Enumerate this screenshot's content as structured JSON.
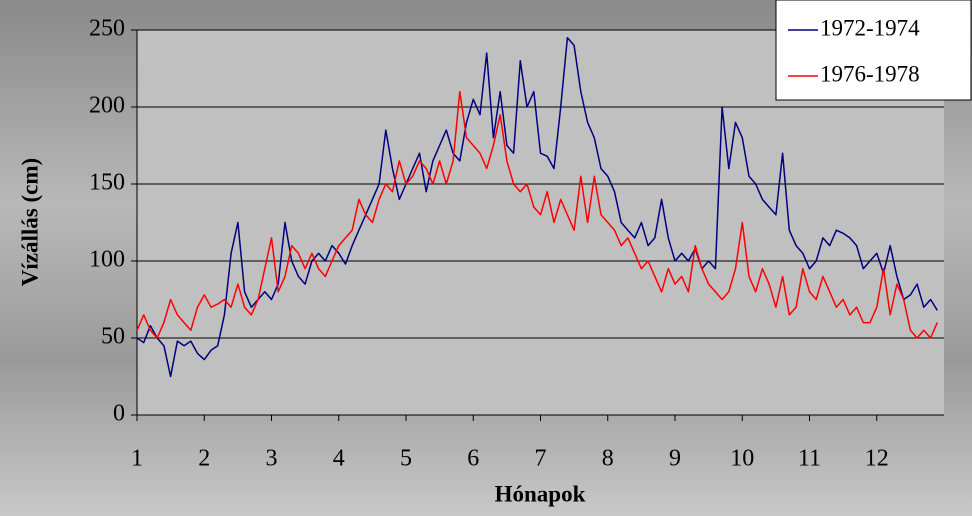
{
  "chart_data": {
    "type": "line",
    "x_label": "Hónapok",
    "y_label": "Vízállás (cm)",
    "x": [
      1.0,
      1.1,
      1.2,
      1.3,
      1.4,
      1.5,
      1.6,
      1.7,
      1.8,
      1.9,
      2.0,
      2.1,
      2.2,
      2.3,
      2.4,
      2.5,
      2.6,
      2.7,
      2.8,
      2.9,
      3.0,
      3.1,
      3.2,
      3.3,
      3.4,
      3.5,
      3.6,
      3.7,
      3.8,
      3.9,
      4.0,
      4.1,
      4.2,
      4.3,
      4.4,
      4.5,
      4.6,
      4.7,
      4.8,
      4.9,
      5.0,
      5.1,
      5.2,
      5.3,
      5.4,
      5.5,
      5.6,
      5.7,
      5.8,
      5.9,
      6.0,
      6.1,
      6.2,
      6.3,
      6.4,
      6.5,
      6.6,
      6.7,
      6.8,
      6.9,
      7.0,
      7.1,
      7.2,
      7.3,
      7.4,
      7.5,
      7.6,
      7.7,
      7.8,
      7.9,
      8.0,
      8.1,
      8.2,
      8.3,
      8.4,
      8.5,
      8.6,
      8.7,
      8.8,
      8.9,
      9.0,
      9.1,
      9.2,
      9.3,
      9.4,
      9.5,
      9.6,
      9.7,
      9.8,
      9.9,
      10.0,
      10.1,
      10.2,
      10.3,
      10.4,
      10.5,
      10.6,
      10.7,
      10.8,
      10.9,
      11.0,
      11.1,
      11.2,
      11.3,
      11.4,
      11.5,
      11.6,
      11.7,
      11.8,
      11.9,
      12.0,
      12.1,
      12.2,
      12.3,
      12.4,
      12.5,
      12.6,
      12.7,
      12.8,
      12.9
    ],
    "series": [
      {
        "name": "1972-1974",
        "color": "#000080",
        "values": [
          50,
          47,
          58,
          50,
          45,
          25,
          48,
          45,
          48,
          40,
          36,
          42,
          45,
          65,
          105,
          125,
          80,
          70,
          75,
          80,
          75,
          85,
          125,
          100,
          90,
          85,
          100,
          105,
          100,
          110,
          105,
          98,
          110,
          120,
          130,
          140,
          150,
          185,
          160,
          140,
          150,
          160,
          170,
          145,
          165,
          175,
          185,
          170,
          165,
          190,
          205,
          195,
          235,
          180,
          210,
          175,
          170,
          230,
          200,
          210,
          170,
          168,
          160,
          200,
          245,
          240,
          210,
          190,
          180,
          160,
          155,
          145,
          125,
          120,
          115,
          125,
          110,
          115,
          140,
          115,
          100,
          105,
          100,
          108,
          95,
          100,
          95,
          200,
          160,
          190,
          180,
          155,
          150,
          140,
          135,
          130,
          170,
          120,
          110,
          105,
          95,
          100,
          115,
          110,
          120,
          118,
          115,
          110,
          95,
          100,
          105,
          92,
          110,
          90,
          75,
          78,
          85,
          70,
          75,
          68
        ]
      },
      {
        "name": "1976-1978",
        "color": "#ff0000",
        "values": [
          55,
          65,
          55,
          50,
          60,
          75,
          65,
          60,
          55,
          70,
          78,
          70,
          72,
          75,
          70,
          85,
          70,
          65,
          75,
          95,
          115,
          80,
          90,
          110,
          105,
          95,
          105,
          95,
          90,
          100,
          110,
          115,
          120,
          140,
          130,
          125,
          140,
          150,
          145,
          165,
          150,
          155,
          165,
          160,
          150,
          165,
          150,
          165,
          210,
          180,
          175,
          170,
          160,
          175,
          195,
          165,
          150,
          145,
          150,
          135,
          130,
          145,
          125,
          140,
          130,
          120,
          155,
          125,
          155,
          130,
          125,
          120,
          110,
          115,
          105,
          95,
          100,
          90,
          80,
          95,
          85,
          90,
          80,
          110,
          95,
          85,
          80,
          75,
          80,
          95,
          125,
          90,
          80,
          95,
          85,
          70,
          90,
          65,
          70,
          95,
          80,
          75,
          90,
          80,
          70,
          75,
          65,
          70,
          60,
          60,
          70,
          95,
          65,
          85,
          75,
          55,
          50,
          55,
          50,
          60
        ]
      }
    ],
    "xlim": [
      1,
      13
    ],
    "xticks": [
      1,
      2,
      3,
      4,
      5,
      6,
      7,
      8,
      9,
      10,
      11,
      12
    ],
    "ylim": [
      0,
      250
    ],
    "yticks": [
      0,
      50,
      100,
      150,
      200,
      250
    ],
    "grid": true,
    "legend": "upper right",
    "plot_background": "#c0c0c0"
  }
}
